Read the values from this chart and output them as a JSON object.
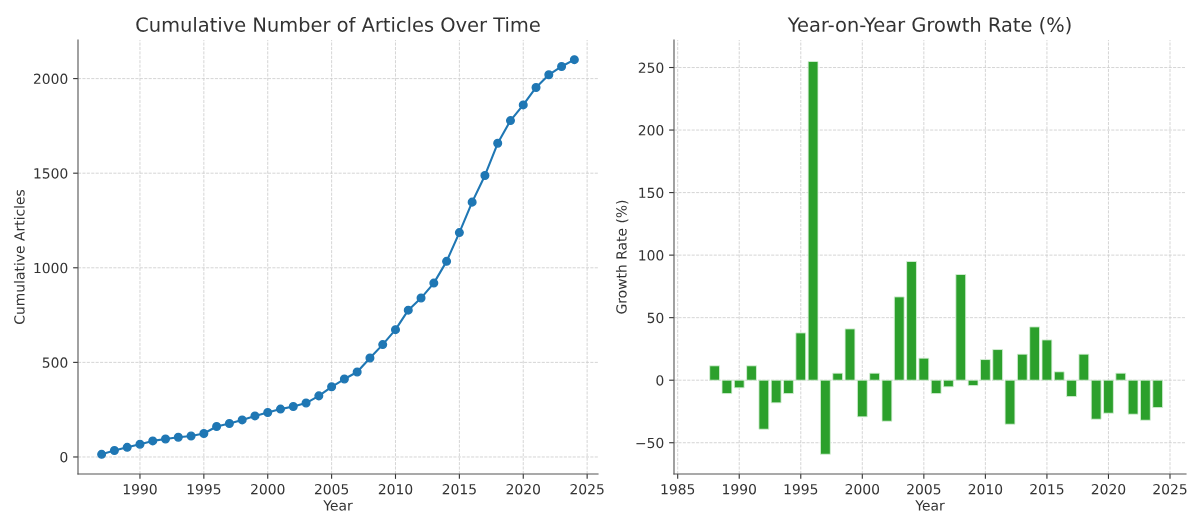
{
  "chart_data": [
    {
      "type": "line",
      "title": "Cumulative Number of Articles Over Time",
      "xlabel": "Year",
      "ylabel": "Cumulative Articles",
      "x": [
        1987,
        1988,
        1989,
        1990,
        1991,
        1992,
        1993,
        1994,
        1995,
        1996,
        1997,
        1998,
        1999,
        2000,
        2001,
        2002,
        2003,
        2004,
        2005,
        2006,
        2007,
        2008,
        2009,
        2010,
        2011,
        2012,
        2013,
        2014,
        2015,
        2016,
        2017,
        2018,
        2019,
        2020,
        2021,
        2022,
        2023,
        2024
      ],
      "series": [
        {
          "color": "#1f77b4",
          "values": [
            14,
            34,
            51,
            67,
            85,
            95,
            104,
            111,
            124,
            161,
            177,
            196,
            217,
            235,
            253,
            267,
            285,
            323,
            371,
            412,
            449,
            523,
            594,
            673,
            776,
            840,
            919,
            1034,
            1186,
            1347,
            1488,
            1658,
            1778,
            1861,
            1953,
            2020,
            2064,
            2100
          ]
        }
      ],
      "xlim": [
        1985.15,
        2025.85
      ],
      "xticks": [
        1990,
        1995,
        2000,
        2005,
        2010,
        2015,
        2020,
        2025
      ],
      "ylim": [
        -90,
        2204
      ],
      "yticks": [
        0,
        500,
        1000,
        1500,
        2000
      ],
      "grid": true,
      "marker": "circle",
      "line_style": "solid"
    },
    {
      "type": "bar",
      "title": "Year-on-Year Growth Rate (%)",
      "xlabel": "Year",
      "ylabel": "Growth Rate (%)",
      "x": [
        1988,
        1989,
        1990,
        1991,
        1992,
        1993,
        1994,
        1995,
        1996,
        1997,
        1998,
        1999,
        2000,
        2001,
        2002,
        2003,
        2004,
        2005,
        2006,
        2007,
        2008,
        2009,
        2010,
        2011,
        2012,
        2013,
        2014,
        2015,
        2016,
        2017,
        2018,
        2019,
        2020,
        2021,
        2022,
        2023,
        2024
      ],
      "series": [
        {
          "color": "#2ca02c",
          "values": [
            11.5,
            -10.7,
            -6.1,
            11.5,
            -39.2,
            -18.1,
            -10.7,
            37.8,
            254.8,
            -59.2,
            5.6,
            41,
            -29.3,
            5.6,
            -32.8,
            66.6,
            94.9,
            17.6,
            -10.7,
            -5.3,
            84.5,
            -4.3,
            16.5,
            24.5,
            -35.2,
            20.8,
            42.6,
            32.2,
            6.7,
            -13.1,
            20.8,
            -31.2,
            -26.4,
            5.6,
            -27.2,
            -32,
            -21.9
          ]
        }
      ],
      "xlim": [
        1984.7,
        2026.3
      ],
      "xticks": [
        1985,
        1990,
        1995,
        2000,
        2005,
        2010,
        2015,
        2020,
        2025
      ],
      "ylim": [
        -75,
        272
      ],
      "yticks": [
        {
          "value": -50,
          "label": "−50"
        },
        0,
        50,
        100,
        150,
        200,
        250
      ],
      "grid": true
    }
  ]
}
